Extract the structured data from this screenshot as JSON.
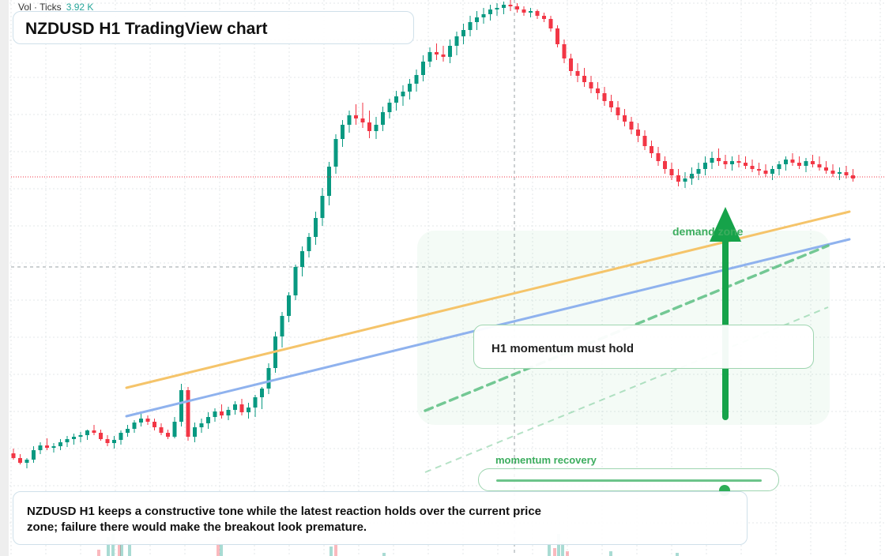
{
  "header": {
    "vol_label": "Vol · Ticks",
    "vol_value": "3.92 K",
    "title": "NZDUSD H1 TradingView chart"
  },
  "annotations": {
    "callout": "H1 momentum must hold",
    "zone_label": "demand zone",
    "momentum_label": "momentum recovery",
    "momentum_level": 0.86,
    "note": "NZDUSD H1 keeps a constructive tone while the latest reaction holds over the current price zone; failure there would make the breakout look premature."
  },
  "colors": {
    "up": "#089981",
    "down": "#f23645",
    "grid": "#e3e7ea",
    "orange_line": "#f5c46a",
    "blue_line": "#8fb2ee",
    "green_accent": "#16a34a",
    "price_line": "#f23645",
    "crosshair": "#9aa0a6"
  },
  "chart_data": {
    "type": "candlestick",
    "title": "NZDUSD H1 TradingView chart",
    "ohlc": [
      [
        574,
        582,
        568,
        580
      ],
      [
        580,
        588,
        575,
        586
      ],
      [
        586,
        593,
        580,
        582
      ],
      [
        582,
        586,
        565,
        570
      ],
      [
        570,
        575,
        560,
        564
      ],
      [
        564,
        570,
        555,
        567
      ],
      [
        567,
        573,
        561,
        565
      ],
      [
        565,
        570,
        556,
        560
      ],
      [
        560,
        566,
        552,
        556
      ],
      [
        556,
        563,
        549,
        553
      ],
      [
        553,
        560,
        547,
        551
      ],
      [
        551,
        557,
        544,
        545
      ],
      [
        545,
        551,
        538,
        548
      ],
      [
        548,
        558,
        544,
        556
      ],
      [
        556,
        565,
        551,
        561
      ],
      [
        561,
        568,
        552,
        557
      ],
      [
        557,
        563,
        545,
        548
      ],
      [
        548,
        553,
        538,
        543
      ],
      [
        543,
        548,
        532,
        535
      ],
      [
        535,
        540,
        522,
        530
      ],
      [
        530,
        538,
        526,
        534
      ],
      [
        534,
        545,
        530,
        541
      ],
      [
        541,
        551,
        536,
        548
      ],
      [
        548,
        556,
        544,
        553
      ],
      [
        553,
        555,
        528,
        534
      ],
      [
        534,
        540,
        486,
        494
      ],
      [
        494,
        558,
        490,
        553
      ],
      [
        553,
        560,
        535,
        541
      ],
      [
        541,
        548,
        530,
        536
      ],
      [
        536,
        543,
        522,
        528
      ],
      [
        528,
        534,
        517,
        521
      ],
      [
        521,
        530,
        512,
        526
      ],
      [
        526,
        532,
        515,
        519
      ],
      [
        519,
        525,
        508,
        512
      ],
      [
        512,
        526,
        505,
        522
      ],
      [
        522,
        530,
        510,
        516
      ],
      [
        516,
        528,
        500,
        503
      ],
      [
        503,
        518,
        490,
        492
      ],
      [
        492,
        499,
        460,
        466
      ],
      [
        466,
        472,
        420,
        426
      ],
      [
        426,
        440,
        395,
        400
      ],
      [
        400,
        408,
        370,
        374
      ],
      [
        374,
        380,
        335,
        338
      ],
      [
        338,
        350,
        312,
        318
      ],
      [
        318,
        326,
        295,
        300
      ],
      [
        300,
        310,
        268,
        276
      ],
      [
        276,
        286,
        238,
        248
      ],
      [
        248,
        260,
        205,
        211
      ],
      [
        211,
        220,
        170,
        176
      ],
      [
        176,
        186,
        152,
        158
      ],
      [
        158,
        168,
        140,
        146
      ],
      [
        146,
        158,
        132,
        150
      ],
      [
        150,
        162,
        130,
        155
      ],
      [
        155,
        175,
        140,
        166
      ],
      [
        166,
        176,
        148,
        158
      ],
      [
        158,
        166,
        135,
        142
      ],
      [
        142,
        150,
        125,
        130
      ],
      [
        130,
        140,
        115,
        122
      ],
      [
        122,
        134,
        108,
        116
      ],
      [
        116,
        126,
        100,
        106
      ],
      [
        106,
        116,
        88,
        95
      ],
      [
        95,
        103,
        70,
        78
      ],
      [
        78,
        85,
        60,
        66
      ],
      [
        66,
        76,
        55,
        69
      ],
      [
        69,
        78,
        58,
        72
      ],
      [
        72,
        80,
        50,
        58
      ],
      [
        58,
        70,
        40,
        46
      ],
      [
        46,
        56,
        30,
        38
      ],
      [
        38,
        46,
        20,
        28
      ],
      [
        28,
        38,
        14,
        22
      ],
      [
        22,
        30,
        10,
        18
      ],
      [
        18,
        26,
        6,
        12
      ],
      [
        12,
        20,
        4,
        10
      ],
      [
        10,
        18,
        2,
        6
      ],
      [
        6,
        14,
        0,
        8
      ],
      [
        8,
        16,
        4,
        12
      ],
      [
        12,
        20,
        8,
        16
      ],
      [
        16,
        22,
        10,
        14
      ],
      [
        14,
        24,
        12,
        20
      ],
      [
        20,
        28,
        16,
        24
      ],
      [
        24,
        40,
        20,
        36
      ],
      [
        36,
        60,
        32,
        56
      ],
      [
        56,
        80,
        50,
        74
      ],
      [
        74,
        96,
        68,
        90
      ],
      [
        90,
        104,
        80,
        96
      ],
      [
        96,
        110,
        86,
        104
      ],
      [
        104,
        118,
        96,
        112
      ],
      [
        112,
        126,
        104,
        118
      ],
      [
        118,
        134,
        110,
        128
      ],
      [
        128,
        142,
        120,
        136
      ],
      [
        136,
        152,
        128,
        146
      ],
      [
        146,
        160,
        138,
        154
      ],
      [
        154,
        170,
        148,
        164
      ],
      [
        164,
        180,
        156,
        172
      ],
      [
        172,
        190,
        165,
        185
      ],
      [
        185,
        200,
        178,
        194
      ],
      [
        194,
        210,
        186,
        204
      ],
      [
        204,
        220,
        198,
        214
      ],
      [
        214,
        228,
        206,
        222
      ],
      [
        222,
        236,
        214,
        230
      ],
      [
        230,
        238,
        218,
        226
      ],
      [
        226,
        234,
        212,
        220
      ],
      [
        220,
        228,
        206,
        214
      ],
      [
        214,
        222,
        198,
        206
      ],
      [
        206,
        214,
        192,
        200
      ],
      [
        200,
        210,
        188,
        204
      ],
      [
        204,
        214,
        196,
        208
      ],
      [
        208,
        216,
        198,
        204
      ],
      [
        204,
        212,
        196,
        206
      ],
      [
        206,
        214,
        198,
        210
      ],
      [
        210,
        218,
        202,
        214
      ],
      [
        214,
        222,
        206,
        216
      ],
      [
        216,
        224,
        208,
        220
      ],
      [
        220,
        228,
        210,
        214
      ],
      [
        214,
        222,
        204,
        208
      ],
      [
        208,
        216,
        198,
        202
      ],
      [
        202,
        210,
        194,
        206
      ],
      [
        206,
        214,
        198,
        210
      ],
      [
        210,
        218,
        200,
        204
      ],
      [
        204,
        212,
        196,
        208
      ],
      [
        208,
        216,
        198,
        212
      ],
      [
        212,
        220,
        204,
        216
      ],
      [
        216,
        224,
        208,
        220
      ],
      [
        220,
        228,
        212,
        218
      ],
      [
        218,
        226,
        210,
        222
      ],
      [
        222,
        230,
        214,
        226
      ]
    ],
    "price_line": 0.7
  }
}
